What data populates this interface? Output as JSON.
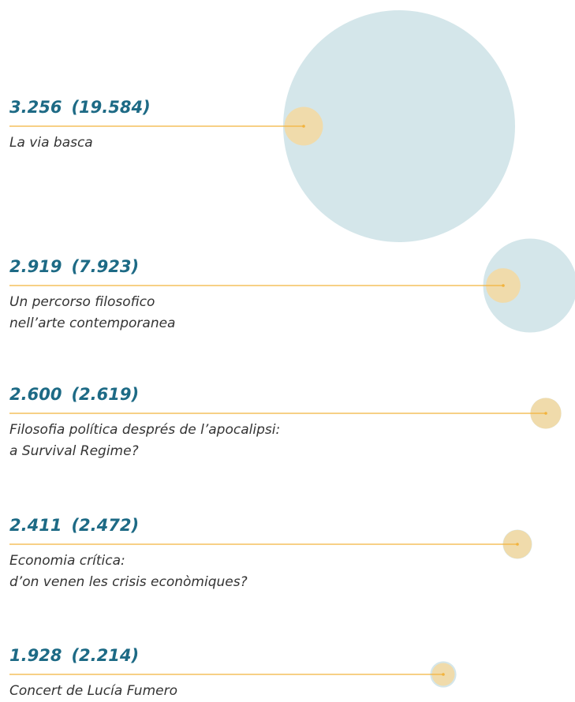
{
  "chart_data": {
    "type": "bubble",
    "categories": [
      "La via basca",
      "Un percorso filosofico\nnell’arte contemporanea",
      "Filosofia política després de l’apocalipsi:\na Survival Regime?",
      "Economia crítica:\nd’on venen les crisis econòmiques?",
      "Concert de Lucía Fumero"
    ],
    "series": [
      {
        "color": "#f3d9a4",
        "values": [
          3256,
          2919,
          2600,
          2411,
          1928
        ],
        "value_labels": [
          "3.256",
          "2.919",
          "2.600",
          "2.411",
          "1.928"
        ]
      },
      {
        "color": "#d4e6ea",
        "values": [
          19584,
          7923,
          2619,
          2472,
          2214
        ],
        "value_labels": [
          "(19.584)",
          "(7.923)",
          "(2.619)",
          "(2.472)",
          "(2.214)"
        ]
      }
    ],
    "line_color": "#f2b33d",
    "label_color": "#1d6a85"
  }
}
